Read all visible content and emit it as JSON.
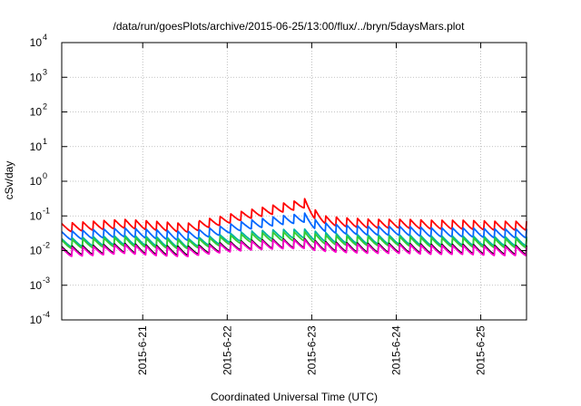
{
  "chart_data": {
    "type": "line",
    "title": "/data/run/goesPlots/archive/2015-06-25/13:00/flux/../bryn/5daysMars.plot",
    "xlabel": "Coordinated Universal Time (UTC)",
    "ylabel": "cSv/day",
    "yscale": "log",
    "ylim": [
      0.0001,
      10000
    ],
    "xlim": [
      "2015-06-20T01:00",
      "2015-06-25T13:00"
    ],
    "y_ticks": [
      {
        "base": "10",
        "exp": "-4"
      },
      {
        "base": "10",
        "exp": "-3"
      },
      {
        "base": "10",
        "exp": "-2"
      },
      {
        "base": "10",
        "exp": "-1"
      },
      {
        "base": "10",
        "exp": "0"
      },
      {
        "base": "10",
        "exp": "1"
      },
      {
        "base": "10",
        "exp": "2"
      },
      {
        "base": "10",
        "exp": "3"
      },
      {
        "base": "10",
        "exp": "4"
      }
    ],
    "x_ticks": [
      {
        "label": "2015-6-21",
        "at": "2015-06-21T00:00"
      },
      {
        "label": "2015-6-22",
        "at": "2015-06-22T00:00"
      },
      {
        "label": "2015-6-23",
        "at": "2015-06-23T00:00"
      },
      {
        "label": "2015-6-24",
        "at": "2015-06-24T00:00"
      },
      {
        "label": "2015-6-25",
        "at": "2015-06-25T00:00"
      }
    ],
    "grid": true,
    "series": [
      {
        "color": "#ff0000",
        "values": [
          0.06,
          0.07,
          0.08,
          0.07,
          0.06,
          0.08,
          0.11,
          0.12,
          0.11,
          0.09,
          0.08,
          0.08,
          0.075,
          0.075,
          0.07,
          0.07
        ]
      },
      {
        "color": "#0066ff",
        "values": [
          0.035,
          0.04,
          0.045,
          0.04,
          0.035,
          0.045,
          0.065,
          0.075,
          0.07,
          0.055,
          0.05,
          0.05,
          0.045,
          0.045,
          0.042,
          0.042
        ]
      },
      {
        "color": "#00b3a0",
        "values": [
          0.022,
          0.025,
          0.027,
          0.025,
          0.022,
          0.027,
          0.035,
          0.038,
          0.036,
          0.03,
          0.028,
          0.028,
          0.026,
          0.026,
          0.025,
          0.025
        ]
      },
      {
        "color": "#33cc33",
        "values": [
          0.02,
          0.022,
          0.024,
          0.022,
          0.02,
          0.024,
          0.03,
          0.032,
          0.03,
          0.026,
          0.025,
          0.025,
          0.023,
          0.023,
          0.022,
          0.022
        ]
      },
      {
        "color": "#000000",
        "values": [
          0.013,
          0.014,
          0.016,
          0.014,
          0.013,
          0.016,
          0.019,
          0.02,
          0.019,
          0.017,
          0.016,
          0.016,
          0.015,
          0.015,
          0.014,
          0.014
        ]
      },
      {
        "color": "#ff00cc",
        "values": [
          0.012,
          0.013,
          0.015,
          0.013,
          0.012,
          0.015,
          0.018,
          0.019,
          0.018,
          0.016,
          0.015,
          0.015,
          0.014,
          0.014,
          0.013,
          0.013
        ]
      }
    ],
    "series_x_range": [
      "2015-06-20T01:00",
      "2015-06-25T13:00"
    ],
    "pattern": "daily-periodic sawtooth: ~8 sharp rises per day, each decaying to ~0.55 of peak; a flare spike on the red series peaks near 0.6 at 2015-06-22T22:00"
  }
}
